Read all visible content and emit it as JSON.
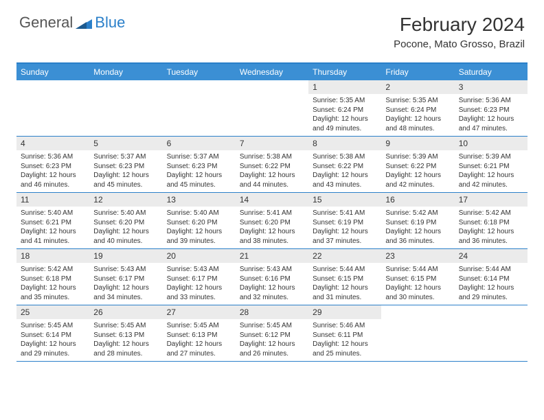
{
  "logo": {
    "general": "General",
    "blue": "Blue"
  },
  "title": "February 2024",
  "subtitle": "Pocone, Mato Grosso, Brazil",
  "colors": {
    "header_bg": "#3b8fd4",
    "header_text": "#ffffff",
    "border": "#2a7fc9",
    "daynum_bg": "#ebebeb",
    "text": "#333333",
    "logo_gray": "#555555",
    "logo_blue": "#2a7fc9",
    "background": "#ffffff"
  },
  "fonts": {
    "title_size": 28,
    "subtitle_size": 15,
    "logo_size": 22,
    "dayheader_size": 12,
    "daynum_size": 12,
    "body_size": 10
  },
  "day_names": [
    "Sunday",
    "Monday",
    "Tuesday",
    "Wednesday",
    "Thursday",
    "Friday",
    "Saturday"
  ],
  "grid": {
    "columns": 7,
    "rows": 5
  },
  "weeks": [
    [
      {
        "empty": true
      },
      {
        "empty": true
      },
      {
        "empty": true
      },
      {
        "empty": true
      },
      {
        "day": "1",
        "sunrise": "Sunrise: 5:35 AM",
        "sunset": "Sunset: 6:24 PM",
        "daylight": "Daylight: 12 hours and 49 minutes."
      },
      {
        "day": "2",
        "sunrise": "Sunrise: 5:35 AM",
        "sunset": "Sunset: 6:24 PM",
        "daylight": "Daylight: 12 hours and 48 minutes."
      },
      {
        "day": "3",
        "sunrise": "Sunrise: 5:36 AM",
        "sunset": "Sunset: 6:23 PM",
        "daylight": "Daylight: 12 hours and 47 minutes."
      }
    ],
    [
      {
        "day": "4",
        "sunrise": "Sunrise: 5:36 AM",
        "sunset": "Sunset: 6:23 PM",
        "daylight": "Daylight: 12 hours and 46 minutes."
      },
      {
        "day": "5",
        "sunrise": "Sunrise: 5:37 AM",
        "sunset": "Sunset: 6:23 PM",
        "daylight": "Daylight: 12 hours and 45 minutes."
      },
      {
        "day": "6",
        "sunrise": "Sunrise: 5:37 AM",
        "sunset": "Sunset: 6:23 PM",
        "daylight": "Daylight: 12 hours and 45 minutes."
      },
      {
        "day": "7",
        "sunrise": "Sunrise: 5:38 AM",
        "sunset": "Sunset: 6:22 PM",
        "daylight": "Daylight: 12 hours and 44 minutes."
      },
      {
        "day": "8",
        "sunrise": "Sunrise: 5:38 AM",
        "sunset": "Sunset: 6:22 PM",
        "daylight": "Daylight: 12 hours and 43 minutes."
      },
      {
        "day": "9",
        "sunrise": "Sunrise: 5:39 AM",
        "sunset": "Sunset: 6:22 PM",
        "daylight": "Daylight: 12 hours and 42 minutes."
      },
      {
        "day": "10",
        "sunrise": "Sunrise: 5:39 AM",
        "sunset": "Sunset: 6:21 PM",
        "daylight": "Daylight: 12 hours and 42 minutes."
      }
    ],
    [
      {
        "day": "11",
        "sunrise": "Sunrise: 5:40 AM",
        "sunset": "Sunset: 6:21 PM",
        "daylight": "Daylight: 12 hours and 41 minutes."
      },
      {
        "day": "12",
        "sunrise": "Sunrise: 5:40 AM",
        "sunset": "Sunset: 6:20 PM",
        "daylight": "Daylight: 12 hours and 40 minutes."
      },
      {
        "day": "13",
        "sunrise": "Sunrise: 5:40 AM",
        "sunset": "Sunset: 6:20 PM",
        "daylight": "Daylight: 12 hours and 39 minutes."
      },
      {
        "day": "14",
        "sunrise": "Sunrise: 5:41 AM",
        "sunset": "Sunset: 6:20 PM",
        "daylight": "Daylight: 12 hours and 38 minutes."
      },
      {
        "day": "15",
        "sunrise": "Sunrise: 5:41 AM",
        "sunset": "Sunset: 6:19 PM",
        "daylight": "Daylight: 12 hours and 37 minutes."
      },
      {
        "day": "16",
        "sunrise": "Sunrise: 5:42 AM",
        "sunset": "Sunset: 6:19 PM",
        "daylight": "Daylight: 12 hours and 36 minutes."
      },
      {
        "day": "17",
        "sunrise": "Sunrise: 5:42 AM",
        "sunset": "Sunset: 6:18 PM",
        "daylight": "Daylight: 12 hours and 36 minutes."
      }
    ],
    [
      {
        "day": "18",
        "sunrise": "Sunrise: 5:42 AM",
        "sunset": "Sunset: 6:18 PM",
        "daylight": "Daylight: 12 hours and 35 minutes."
      },
      {
        "day": "19",
        "sunrise": "Sunrise: 5:43 AM",
        "sunset": "Sunset: 6:17 PM",
        "daylight": "Daylight: 12 hours and 34 minutes."
      },
      {
        "day": "20",
        "sunrise": "Sunrise: 5:43 AM",
        "sunset": "Sunset: 6:17 PM",
        "daylight": "Daylight: 12 hours and 33 minutes."
      },
      {
        "day": "21",
        "sunrise": "Sunrise: 5:43 AM",
        "sunset": "Sunset: 6:16 PM",
        "daylight": "Daylight: 12 hours and 32 minutes."
      },
      {
        "day": "22",
        "sunrise": "Sunrise: 5:44 AM",
        "sunset": "Sunset: 6:15 PM",
        "daylight": "Daylight: 12 hours and 31 minutes."
      },
      {
        "day": "23",
        "sunrise": "Sunrise: 5:44 AM",
        "sunset": "Sunset: 6:15 PM",
        "daylight": "Daylight: 12 hours and 30 minutes."
      },
      {
        "day": "24",
        "sunrise": "Sunrise: 5:44 AM",
        "sunset": "Sunset: 6:14 PM",
        "daylight": "Daylight: 12 hours and 29 minutes."
      }
    ],
    [
      {
        "day": "25",
        "sunrise": "Sunrise: 5:45 AM",
        "sunset": "Sunset: 6:14 PM",
        "daylight": "Daylight: 12 hours and 29 minutes."
      },
      {
        "day": "26",
        "sunrise": "Sunrise: 5:45 AM",
        "sunset": "Sunset: 6:13 PM",
        "daylight": "Daylight: 12 hours and 28 minutes."
      },
      {
        "day": "27",
        "sunrise": "Sunrise: 5:45 AM",
        "sunset": "Sunset: 6:13 PM",
        "daylight": "Daylight: 12 hours and 27 minutes."
      },
      {
        "day": "28",
        "sunrise": "Sunrise: 5:45 AM",
        "sunset": "Sunset: 6:12 PM",
        "daylight": "Daylight: 12 hours and 26 minutes."
      },
      {
        "day": "29",
        "sunrise": "Sunrise: 5:46 AM",
        "sunset": "Sunset: 6:11 PM",
        "daylight": "Daylight: 12 hours and 25 minutes."
      },
      {
        "empty": true
      },
      {
        "empty": true
      }
    ]
  ]
}
